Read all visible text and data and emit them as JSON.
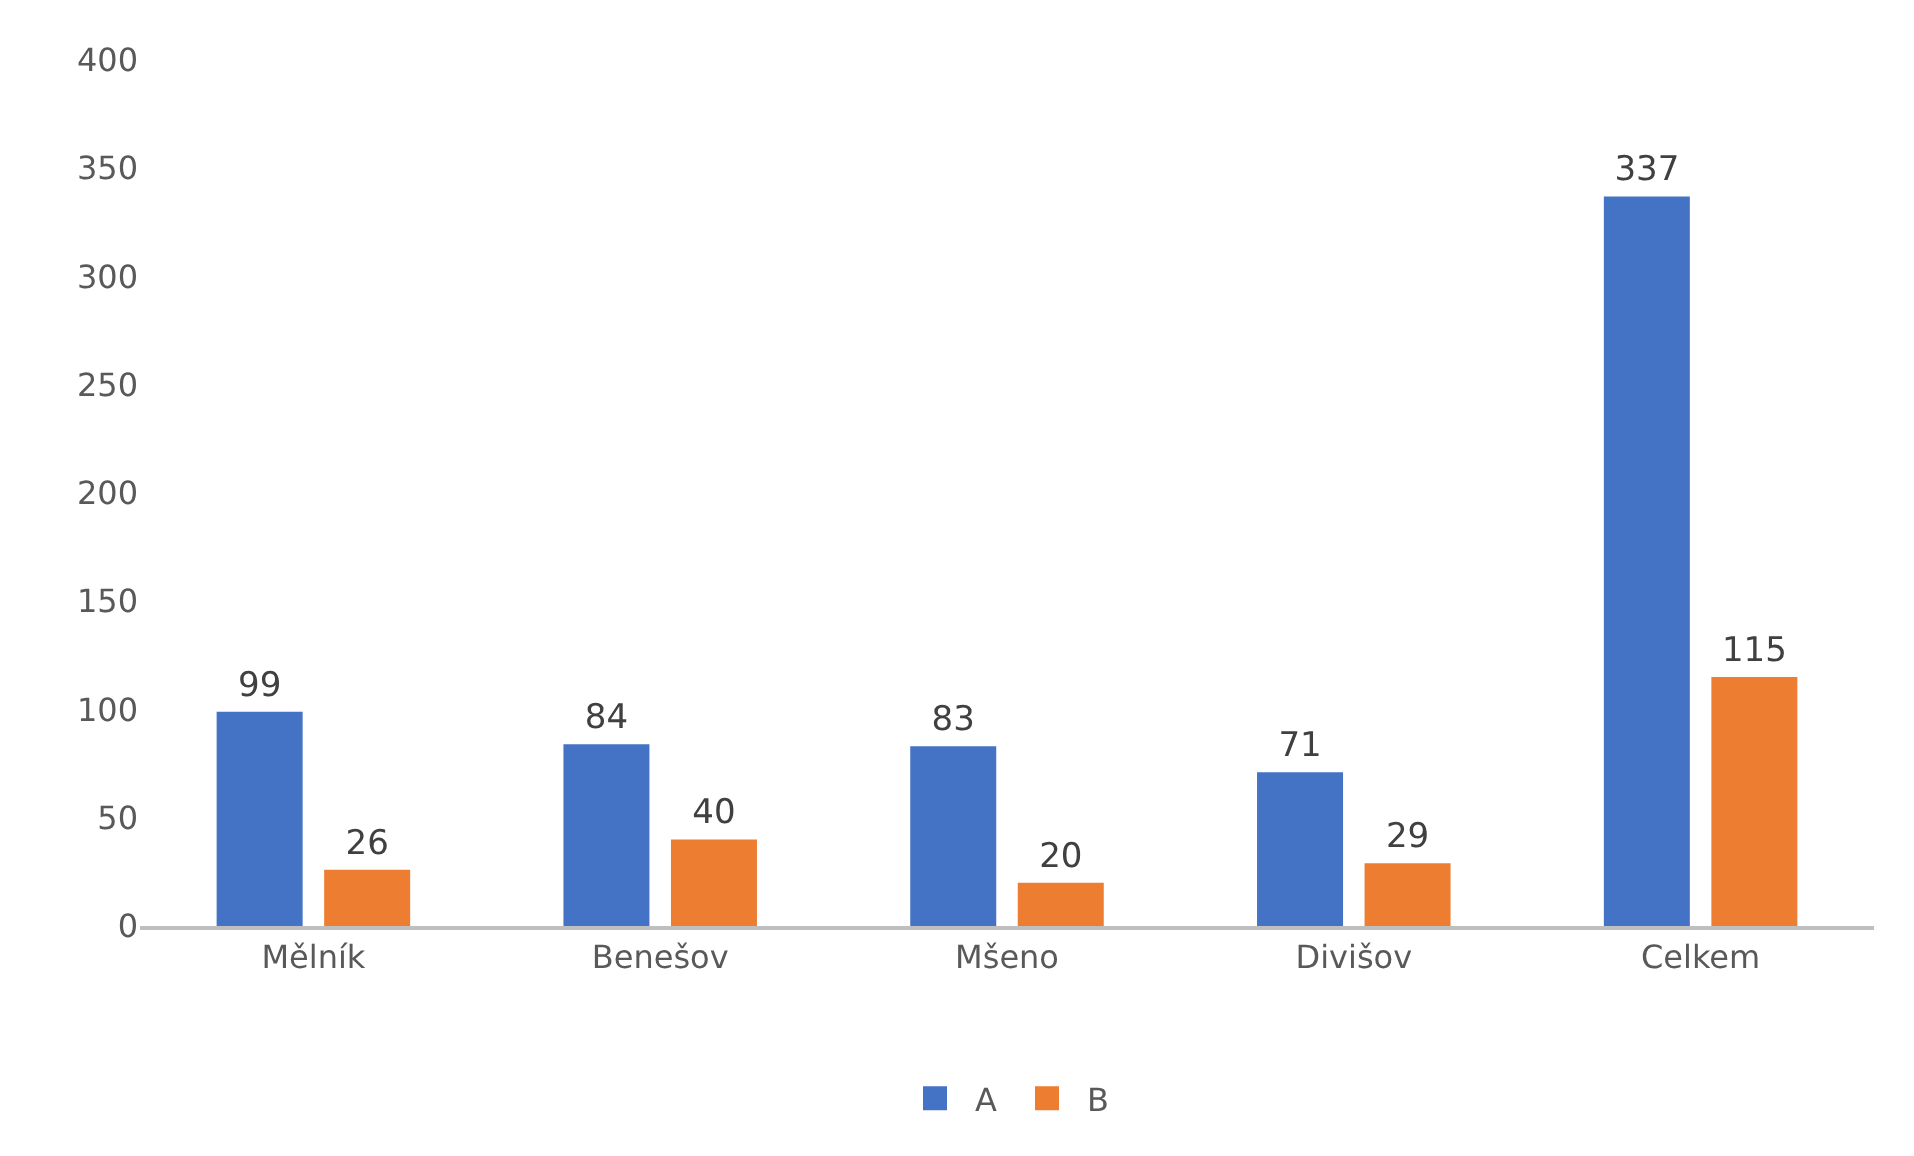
{
  "chart_data": {
    "type": "bar",
    "categories": [
      "Mělník",
      "Benešov",
      "Mšeno",
      "Divišov",
      "Celkem"
    ],
    "series": [
      {
        "name": "A",
        "color": "#4472c4",
        "values": [
          99,
          84,
          83,
          71,
          337
        ]
      },
      {
        "name": "B",
        "color": "#ed7d31",
        "values": [
          26,
          40,
          20,
          29,
          115
        ]
      }
    ],
    "ylim": [
      0,
      400
    ],
    "yticks": [
      0,
      50,
      100,
      150,
      200,
      250,
      300,
      350,
      400
    ],
    "data_labels": true,
    "legend": "bottom",
    "grid": false
  }
}
